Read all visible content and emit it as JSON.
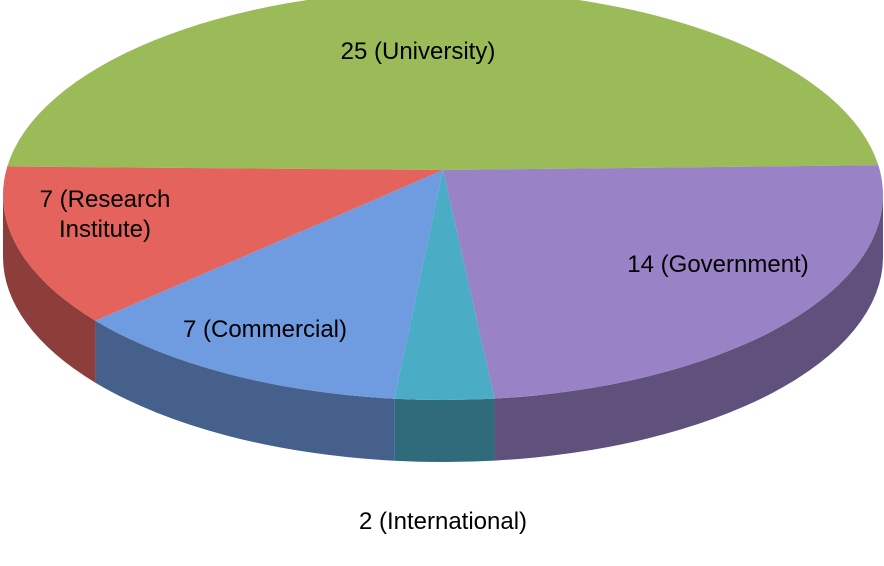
{
  "chart_data": {
    "type": "pie",
    "values": [
      25,
      14,
      2,
      7,
      7
    ],
    "value_labels": [
      "25 (University)",
      "14 (Government)",
      "2 (International)",
      "7 (Commercial)",
      "7 (Research Institute)"
    ],
    "colors": [
      "#9bbb59",
      "#9a82c6",
      "#4bacc6",
      "#6f9be0",
      "#e4635d"
    ]
  }
}
